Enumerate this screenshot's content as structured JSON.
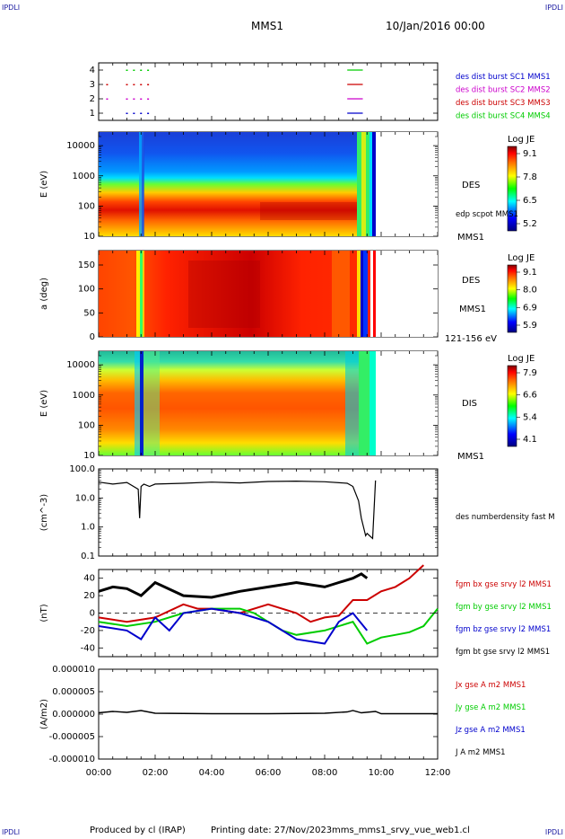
{
  "header": {
    "corner_left": "IPDLI",
    "corner_right": "IPDLI",
    "corner_bottom_left": "IPDLI",
    "corner_bottom_right": "IPDLI",
    "title": "MMS1",
    "date": "10/Jan/2016 00:00"
  },
  "footer": {
    "produced": "Produced by cl (IRAP)",
    "printing": "Printing date: 27/Nov/2023",
    "file": "mms_mms1_srvy_vue_web1.cl"
  },
  "colors": {
    "blue": "#0000cc",
    "magenta": "#cc00cc",
    "red": "#cc0000",
    "green": "#00cc00",
    "black": "#000000"
  },
  "chart_data": [
    {
      "type": "scatter",
      "id": "coverage",
      "yticks": [
        "1",
        "2",
        "3",
        "4"
      ],
      "ylim": [
        0.5,
        4.5
      ],
      "legend": [
        {
          "name": "des dist burst SC1 MMS1",
          "color": "#0000cc"
        },
        {
          "name": "des dist burst SC2 MMS2",
          "color": "#cc00cc"
        },
        {
          "name": "des dist burst SC3 MMS3",
          "color": "#cc0000"
        },
        {
          "name": "des dist burst SC4 MMS4",
          "color": "#00cc00"
        }
      ],
      "series": [
        {
          "y": 1,
          "color": "#0000cc",
          "dots": [
            1.0,
            1.25,
            1.5,
            1.75
          ],
          "line": [
            8.8,
            9.35
          ]
        },
        {
          "y": 2,
          "color": "#cc00cc",
          "dots": [
            0.3,
            1.0,
            1.25,
            1.5,
            1.75
          ],
          "line": [
            8.8,
            9.35
          ]
        },
        {
          "y": 3,
          "color": "#cc0000",
          "dots": [
            0.3,
            1.0,
            1.25,
            1.5,
            1.75
          ],
          "line": [
            8.8,
            9.35
          ]
        },
        {
          "y": 4,
          "color": "#00cc00",
          "dots": [
            1.0,
            1.25,
            1.5,
            1.75
          ],
          "line": [
            8.8,
            9.35
          ]
        }
      ]
    },
    {
      "type": "heatmap",
      "id": "des-energy",
      "ylabel": "E (eV)",
      "scale": "log",
      "yticks": [
        "10",
        "100",
        "1000",
        "10000"
      ],
      "species": "DES",
      "overlay": "edp scpot MMS1",
      "unit": "MMS1",
      "colorbar": {
        "title": "Log JE",
        "ticks": [
          "9.1",
          "7.8",
          "6.5",
          "5.2"
        ]
      }
    },
    {
      "type": "heatmap",
      "id": "des-pitch",
      "ylabel": "a (deg)",
      "yticks": [
        "0",
        "50",
        "100",
        "150"
      ],
      "ylim": [
        0,
        180
      ],
      "species": "DES",
      "unit": "MMS1",
      "range": "121-156 eV",
      "colorbar": {
        "title": "Log JE",
        "ticks": [
          "9.1",
          "8.0",
          "6.9",
          "5.9"
        ]
      }
    },
    {
      "type": "heatmap",
      "id": "dis-energy",
      "ylabel": "E (eV)",
      "scale": "log",
      "yticks": [
        "10",
        "100",
        "1000",
        "10000"
      ],
      "species": "DIS",
      "unit": "MMS1",
      "colorbar": {
        "title": "Log JE",
        "ticks": [
          "7.9",
          "6.6",
          "5.4",
          "4.1"
        ]
      }
    },
    {
      "type": "line",
      "id": "density",
      "ylabel": "(cm^-3)",
      "scale": "log",
      "yticks": [
        "0.1",
        "1.0",
        "10.0",
        "100.0"
      ],
      "ylim": [
        0.1,
        100
      ],
      "legend": [
        {
          "name": "des numberdensity fast M",
          "color": "#000000"
        }
      ],
      "x": [
        0.0,
        0.5,
        1.0,
        1.4,
        1.45,
        1.5,
        1.6,
        1.8,
        2.0,
        3.0,
        4.0,
        5.0,
        6.0,
        7.0,
        8.0,
        8.8,
        9.0,
        9.2,
        9.3,
        9.45,
        9.5,
        9.7,
        9.8
      ],
      "values": [
        35,
        30,
        34,
        20,
        2.0,
        25,
        30,
        25,
        30,
        32,
        35,
        33,
        37,
        38,
        36,
        32,
        25,
        8,
        2,
        0.5,
        0.6,
        0.4,
        40
      ]
    },
    {
      "type": "line",
      "id": "magnetic-field",
      "ylabel": "(nT)",
      "yticks": [
        "-40",
        "-20",
        "0",
        "20",
        "40"
      ],
      "ylim": [
        -50,
        50
      ],
      "legend": [
        {
          "name": "fgm bx gse srvy l2 MMS1",
          "color": "#cc0000"
        },
        {
          "name": "fgm by gse srvy l2 MMS1",
          "color": "#00cc00"
        },
        {
          "name": "fgm bz gse srvy l2 MMS1",
          "color": "#0000cc"
        },
        {
          "name": "fgm bt gse srvy l2 MMS1",
          "color": "#000000"
        }
      ],
      "series": [
        {
          "name": "bx",
          "color": "#cc0000",
          "x": [
            0,
            1,
            2,
            3,
            3.5,
            4,
            5,
            6,
            7,
            7.5,
            8,
            8.5,
            9,
            9.5,
            10,
            10.5,
            11,
            11.5
          ],
          "values": [
            -5,
            -10,
            -5,
            10,
            5,
            5,
            0,
            10,
            0,
            -10,
            -5,
            -3,
            15,
            15,
            25,
            30,
            40,
            55
          ]
        },
        {
          "name": "by",
          "color": "#00cc00",
          "x": [
            0,
            1,
            2,
            3,
            4,
            5,
            5.5,
            6,
            6.5,
            7,
            8,
            9,
            9.5,
            10,
            10.5,
            11,
            11.5,
            12
          ],
          "values": [
            -10,
            -15,
            -10,
            0,
            5,
            5,
            0,
            -10,
            -20,
            -25,
            -20,
            -10,
            -35,
            -28,
            -25,
            -22,
            -15,
            5
          ]
        },
        {
          "name": "bz",
          "color": "#0000cc",
          "x": [
            0,
            1,
            1.5,
            2,
            2.5,
            3,
            4,
            5,
            6,
            6.5,
            7,
            8,
            8.5,
            9,
            9.5
          ],
          "values": [
            -15,
            -20,
            -30,
            -5,
            -20,
            0,
            5,
            0,
            -10,
            -20,
            -30,
            -35,
            -10,
            0,
            -20
          ]
        },
        {
          "name": "bt",
          "color": "#000000",
          "x": [
            0,
            0.5,
            1,
            1.5,
            2,
            3,
            4,
            5,
            6,
            7,
            8,
            8.5,
            9,
            9.3,
            9.5
          ],
          "values": [
            25,
            30,
            28,
            20,
            35,
            20,
            18,
            25,
            30,
            35,
            30,
            35,
            40,
            45,
            40
          ]
        }
      ]
    },
    {
      "type": "line",
      "id": "current",
      "ylabel": "(A/m2)",
      "yticks": [
        "-0.000010",
        "-0.000005",
        "0.000000",
        "0.000005",
        "0.000010"
      ],
      "ylim": [
        -1e-05,
        1e-05
      ],
      "legend": [
        {
          "name": "Jx gse A m2 MMS1",
          "color": "#cc0000"
        },
        {
          "name": "Jy gse A m2 MMS1",
          "color": "#00cc00"
        },
        {
          "name": "Jz gse A m2 MMS1",
          "color": "#0000cc"
        },
        {
          "name": "J A m2 MMS1",
          "color": "#000000"
        }
      ],
      "x": [
        0,
        0.5,
        1,
        1.5,
        2,
        4,
        6,
        8,
        8.8,
        9.0,
        9.3,
        9.8,
        10,
        12
      ],
      "values": [
        3e-07,
        6e-07,
        4e-07,
        8e-07,
        2e-07,
        1e-07,
        1e-07,
        2e-07,
        5e-07,
        8e-07,
        3e-07,
        6e-07,
        1e-07,
        1e-07
      ]
    }
  ],
  "xaxis": {
    "ticks": [
      "00:00",
      "02:00",
      "04:00",
      "06:00",
      "08:00",
      "10:00",
      "12:00"
    ],
    "xlim": [
      0,
      12
    ]
  }
}
